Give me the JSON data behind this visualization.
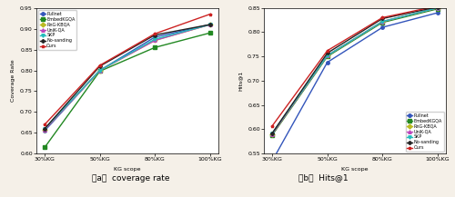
{
  "x_labels": [
    "30%KG",
    "50%KG",
    "80%KG",
    "100%KG"
  ],
  "x_values": [
    0,
    1,
    2,
    3
  ],
  "coverage_rate": {
    "Pullnet": [
      0.655,
      0.8,
      0.88,
      0.91
    ],
    "EmbedKGQA": [
      0.615,
      0.798,
      0.855,
      0.89
    ],
    "RnG-KBQA": [
      0.658,
      0.8,
      0.872,
      0.91
    ],
    "UniK-QA": [
      0.658,
      0.8,
      0.872,
      0.91
    ],
    "SKP": [
      0.66,
      0.8,
      0.875,
      0.91
    ],
    "No-sanding": [
      0.66,
      0.81,
      0.885,
      0.91
    ],
    "Ours": [
      0.67,
      0.812,
      0.888,
      0.935
    ]
  },
  "hits1": {
    "Pullnet": [
      0.535,
      0.738,
      0.81,
      0.84
    ],
    "EmbedKGQA": [
      0.588,
      0.75,
      0.82,
      0.848
    ],
    "RnG-KBQA": [
      0.59,
      0.752,
      0.822,
      0.85
    ],
    "UniK-QA": [
      0.59,
      0.752,
      0.822,
      0.85
    ],
    "SKP": [
      0.592,
      0.752,
      0.822,
      0.85
    ],
    "No-sanding": [
      0.592,
      0.757,
      0.828,
      0.852
    ],
    "Ours": [
      0.607,
      0.762,
      0.83,
      0.854
    ]
  },
  "colors": {
    "Pullnet": "#3355bb",
    "EmbedKGQA": "#228822",
    "RnG-KBQA": "#bbbb22",
    "UniK-QA": "#bb44bb",
    "SKP": "#22bbbb",
    "No-sanding": "#222222",
    "Ours": "#cc2222"
  },
  "markers": {
    "Pullnet": "o",
    "EmbedKGQA": "s",
    "RnG-KBQA": "D",
    "UniK-QA": "^",
    "SKP": "v",
    "No-sanding": "P",
    "Ours": "*"
  },
  "ylabel_left": "Coverage Rate",
  "ylabel_right": "Hits@1",
  "xlabel": "KG scope",
  "caption_left": "（a）  coverage rate",
  "caption_right": "（b）  Hits@1",
  "ylim_left": [
    0.6,
    0.95
  ],
  "ylim_right": [
    0.55,
    0.85
  ],
  "yticks_left": [
    0.6,
    0.65,
    0.7,
    0.75,
    0.8,
    0.85,
    0.9,
    0.95
  ],
  "yticks_right": [
    0.55,
    0.6,
    0.65,
    0.7,
    0.75,
    0.8,
    0.85
  ],
  "outer_bg": "#f5f0e8",
  "plot_bg": "#ffffff",
  "legend_loc_left": "upper left",
  "legend_loc_right": "lower right"
}
